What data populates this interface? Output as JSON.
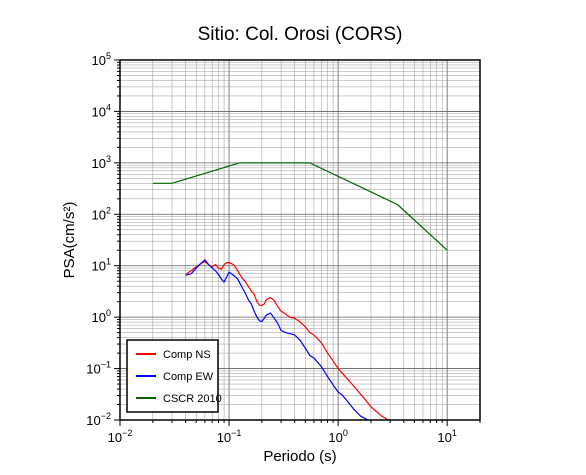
{
  "chart_data": {
    "type": "line",
    "title": "Sitio: Col. Orosi (CORS)",
    "xlabel": "Periodo (s)",
    "ylabel": "PSA(cm/s²)",
    "x_scale": "log",
    "y_scale": "log",
    "xlim": [
      0.01,
      20
    ],
    "ylim": [
      0.01,
      100000
    ],
    "grid": true,
    "legend_position": "bottom-left",
    "x_ticks": [
      {
        "base": "10",
        "exp": "−2",
        "value": 0.01
      },
      {
        "base": "10",
        "exp": "−1",
        "value": 0.1
      },
      {
        "base": "10",
        "exp": "0",
        "value": 1
      },
      {
        "base": "10",
        "exp": "1",
        "value": 10
      }
    ],
    "y_ticks": [
      {
        "base": "10",
        "exp": "−2",
        "value": 0.01
      },
      {
        "base": "10",
        "exp": "−1",
        "value": 0.1
      },
      {
        "base": "10",
        "exp": "0",
        "value": 1
      },
      {
        "base": "10",
        "exp": "1",
        "value": 10
      },
      {
        "base": "10",
        "exp": "2",
        "value": 100
      },
      {
        "base": "10",
        "exp": "3",
        "value": 1000
      },
      {
        "base": "10",
        "exp": "4",
        "value": 10000
      },
      {
        "base": "10",
        "exp": "5",
        "value": 100000
      }
    ],
    "series": [
      {
        "name": "Comp NS",
        "color": "#ff0000",
        "points": [
          [
            0.04,
            6.8
          ],
          [
            0.045,
            8.0
          ],
          [
            0.05,
            9.5
          ],
          [
            0.055,
            11.0
          ],
          [
            0.06,
            12.0
          ],
          [
            0.065,
            10.5
          ],
          [
            0.07,
            9.5
          ],
          [
            0.075,
            10.5
          ],
          [
            0.08,
            9.0
          ],
          [
            0.085,
            8.5
          ],
          [
            0.09,
            10.5
          ],
          [
            0.095,
            11.5
          ],
          [
            0.1,
            11.5
          ],
          [
            0.11,
            10.5
          ],
          [
            0.12,
            8.0
          ],
          [
            0.13,
            6.0
          ],
          [
            0.14,
            5.0
          ],
          [
            0.15,
            4.0
          ],
          [
            0.16,
            3.2
          ],
          [
            0.17,
            2.8
          ],
          [
            0.18,
            2.0
          ],
          [
            0.19,
            1.7
          ],
          [
            0.2,
            1.7
          ],
          [
            0.21,
            1.8
          ],
          [
            0.22,
            2.2
          ],
          [
            0.24,
            2.4
          ],
          [
            0.26,
            2.1
          ],
          [
            0.28,
            1.6
          ],
          [
            0.3,
            1.3
          ],
          [
            0.33,
            1.15
          ],
          [
            0.36,
            1.0
          ],
          [
            0.4,
            0.95
          ],
          [
            0.45,
            0.8
          ],
          [
            0.5,
            0.65
          ],
          [
            0.55,
            0.5
          ],
          [
            0.6,
            0.45
          ],
          [
            0.7,
            0.32
          ],
          [
            0.8,
            0.2
          ],
          [
            0.9,
            0.14
          ],
          [
            1.0,
            0.1
          ],
          [
            1.2,
            0.065
          ],
          [
            1.4,
            0.045
          ],
          [
            1.6,
            0.032
          ],
          [
            1.8,
            0.024
          ],
          [
            2.0,
            0.018
          ],
          [
            2.5,
            0.012
          ],
          [
            3.0,
            0.0095
          ]
        ]
      },
      {
        "name": "Comp EW",
        "color": "#0000ff",
        "points": [
          [
            0.04,
            6.5
          ],
          [
            0.045,
            7.0
          ],
          [
            0.05,
            9.0
          ],
          [
            0.055,
            11.0
          ],
          [
            0.06,
            13.0
          ],
          [
            0.065,
            10.5
          ],
          [
            0.07,
            9.0
          ],
          [
            0.075,
            8.0
          ],
          [
            0.08,
            6.8
          ],
          [
            0.085,
            5.5
          ],
          [
            0.09,
            4.8
          ],
          [
            0.095,
            6.0
          ],
          [
            0.1,
            7.5
          ],
          [
            0.11,
            6.5
          ],
          [
            0.12,
            5.5
          ],
          [
            0.13,
            4.0
          ],
          [
            0.14,
            3.0
          ],
          [
            0.15,
            2.2
          ],
          [
            0.16,
            1.8
          ],
          [
            0.17,
            1.3
          ],
          [
            0.18,
            1.0
          ],
          [
            0.19,
            0.85
          ],
          [
            0.2,
            0.82
          ],
          [
            0.21,
            0.95
          ],
          [
            0.22,
            1.1
          ],
          [
            0.24,
            1.2
          ],
          [
            0.26,
            0.95
          ],
          [
            0.28,
            0.75
          ],
          [
            0.3,
            0.55
          ],
          [
            0.33,
            0.5
          ],
          [
            0.36,
            0.48
          ],
          [
            0.4,
            0.45
          ],
          [
            0.45,
            0.35
          ],
          [
            0.5,
            0.25
          ],
          [
            0.55,
            0.18
          ],
          [
            0.6,
            0.16
          ],
          [
            0.7,
            0.11
          ],
          [
            0.8,
            0.07
          ],
          [
            0.9,
            0.048
          ],
          [
            1.0,
            0.035
          ],
          [
            1.1,
            0.03
          ],
          [
            1.2,
            0.024
          ],
          [
            1.4,
            0.016
          ],
          [
            1.6,
            0.012
          ],
          [
            1.8,
            0.0105
          ],
          [
            2.0,
            0.0095
          ]
        ]
      },
      {
        "name": "CSCR 2010",
        "color": "#006400",
        "points": [
          [
            0.02,
            400
          ],
          [
            0.03,
            400
          ],
          [
            0.125,
            1000
          ],
          [
            0.55,
            1000
          ],
          [
            3.5,
            155
          ],
          [
            10.0,
            20
          ]
        ]
      }
    ]
  }
}
